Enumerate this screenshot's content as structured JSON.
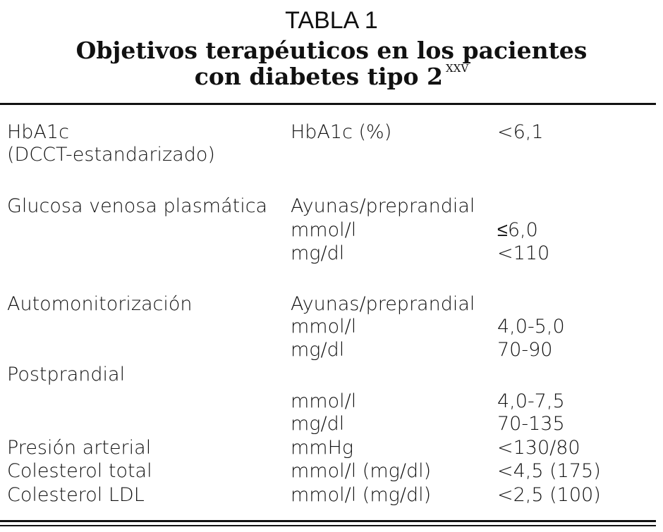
{
  "table": {
    "label": "TABLA 1",
    "title": [
      "Objetivos terapéuticos en los pacientes",
      "con diabetes tipo 2"
    ],
    "title_reference": "XXV",
    "rows": [
      {
        "label": "HbA1c",
        "unit": "HbA1c (%)",
        "value": "<6,1"
      },
      {
        "label": "(DCCT-estandarizado)"
      },
      {
        "label": "Glucosa venosa plasmática",
        "unit": "Ayunas/preprandial"
      },
      {
        "unit": "mmol/l",
        "value": "≤6,0"
      },
      {
        "unit": "mg/dl",
        "value": "<110"
      },
      {
        "label": "Automonitorización",
        "unit": "Ayunas/preprandial"
      },
      {
        "unit": "mmol/l",
        "value": "4,0-5,0"
      },
      {
        "unit": "mg/dl",
        "value": "70-90"
      },
      {
        "label": "Postprandial"
      },
      {
        "unit": "mmol/l",
        "value": "4,0-7,5"
      },
      {
        "unit": "mg/dl",
        "value": "70-135"
      },
      {
        "label": "Presión arterial",
        "unit": "mmHg",
        "value": "<130/80"
      },
      {
        "label": "Colesterol total",
        "unit": "mmol/l (mg/dl)",
        "value": "<4,5 (175)"
      },
      {
        "label": "Colesterol LDL",
        "unit": "mmol/l (mg/dl)",
        "value": "<2,5 (100)"
      }
    ]
  }
}
